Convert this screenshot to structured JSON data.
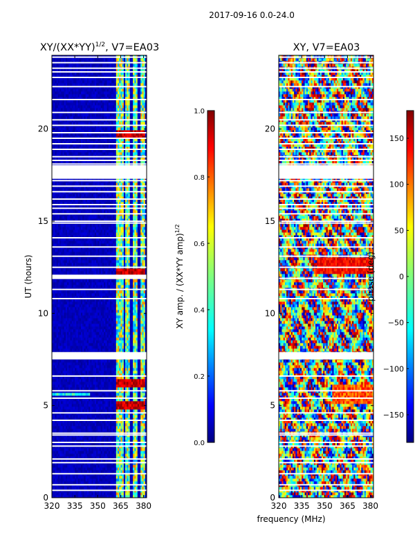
{
  "suptitle": "2017-09-16 0.0-24.0",
  "xlabel_shared": "frequency (MHz)",
  "colors": {
    "jet": [
      "#00007f",
      "#0000ff",
      "#007fff",
      "#00ffff",
      "#7fff7f",
      "#ffff00",
      "#ff7f00",
      "#ff0000",
      "#7f0000"
    ]
  },
  "chart_data": [
    {
      "type": "heatmap",
      "title_main": "XY/(XX*YY)",
      "title_sup": "1/2",
      "title_rest": ", V7=EA03",
      "xlabel": "",
      "ylabel": "UT (hours)",
      "xlim": [
        320,
        382
      ],
      "ylim": [
        0,
        24
      ],
      "xticks": [
        "320",
        "335",
        "350",
        "365",
        "380"
      ],
      "xtick_values": [
        320,
        335,
        350,
        365,
        380
      ],
      "yticks": [
        "0",
        "5",
        "10",
        "15",
        "20"
      ],
      "ytick_values": [
        0,
        5,
        10,
        15,
        20
      ],
      "colorbar": {
        "label_main": "XY amp. / (XX*YY amp)",
        "label_sup": "1/2",
        "range": [
          0.0,
          1.0
        ],
        "ticks": [
          "0.0",
          "0.2",
          "0.4",
          "0.6",
          "0.8",
          "1.0"
        ],
        "tick_values": [
          0.0,
          0.2,
          0.4,
          0.6,
          0.8,
          1.0
        ]
      },
      "flagged_rows_ut": [
        0.4,
        0.7,
        1.3,
        1.9,
        2.1,
        2.8,
        3.0,
        3.4,
        3.5,
        4.2,
        4.6,
        5.4,
        5.8,
        6.6,
        7.6,
        7.7,
        7.8,
        10.8,
        11.3,
        11.9,
        12.5,
        13.1,
        13.6,
        14.1,
        14.9,
        15.0,
        15.4,
        15.7,
        15.9,
        16.2,
        16.6,
        16.9,
        17.2,
        17.9,
        18.0,
        18.1,
        18.3,
        18.5,
        18.9,
        19.2,
        19.5,
        19.8,
        20.2,
        20.5,
        20.9,
        21.6,
        22.3,
        22.8,
        23.1,
        23.3,
        23.6,
        23.9
      ],
      "flagged_bands_ut": [
        [
          17.3,
          18.0
        ],
        [
          7.5,
          7.9
        ],
        [
          11.9,
          12.1
        ]
      ],
      "bright_columns_mhz": [
        363,
        364,
        366,
        369,
        370,
        374,
        375,
        379,
        380
      ],
      "hot_rows_ut": [
        6.2,
        5.0,
        12.2,
        19.7
      ]
    },
    {
      "type": "heatmap",
      "title_main": "XY, V7=EA03",
      "xlabel": "frequency (MHz)",
      "ylabel": "",
      "xlim": [
        320,
        382
      ],
      "ylim": [
        0,
        24
      ],
      "xticks": [
        "320",
        "335",
        "350",
        "365",
        "380"
      ],
      "xtick_values": [
        320,
        335,
        350,
        365,
        380
      ],
      "yticks": [
        "0",
        "5",
        "10",
        "15",
        "20"
      ],
      "ytick_values": [
        0,
        5,
        10,
        15,
        20
      ],
      "colorbar": {
        "label_main": "phase (deg)",
        "range": [
          -180,
          180
        ],
        "ticks": [
          "−150",
          "−100",
          "−50",
          "0",
          "50",
          "100",
          "150"
        ],
        "tick_values": [
          -150,
          -100,
          -50,
          0,
          50,
          100,
          150
        ]
      },
      "flagged_rows_ut": [
        0.4,
        0.7,
        1.3,
        1.9,
        2.1,
        2.8,
        3.0,
        3.4,
        3.5,
        4.2,
        4.6,
        5.4,
        5.8,
        6.6,
        7.6,
        7.7,
        7.8,
        10.8,
        11.3,
        11.9,
        12.5,
        13.1,
        13.6,
        14.1,
        14.9,
        15.0,
        15.4,
        15.7,
        15.9,
        16.2,
        16.6,
        16.9,
        17.2,
        17.9,
        18.0,
        18.1,
        18.3,
        18.5,
        18.9,
        19.2,
        19.5,
        19.8,
        20.2,
        20.5,
        20.9,
        21.6,
        22.3,
        22.8,
        23.1,
        23.3,
        23.6,
        23.9
      ],
      "flagged_bands_ut": [
        [
          17.3,
          18.0
        ],
        [
          7.5,
          7.9
        ]
      ]
    }
  ]
}
